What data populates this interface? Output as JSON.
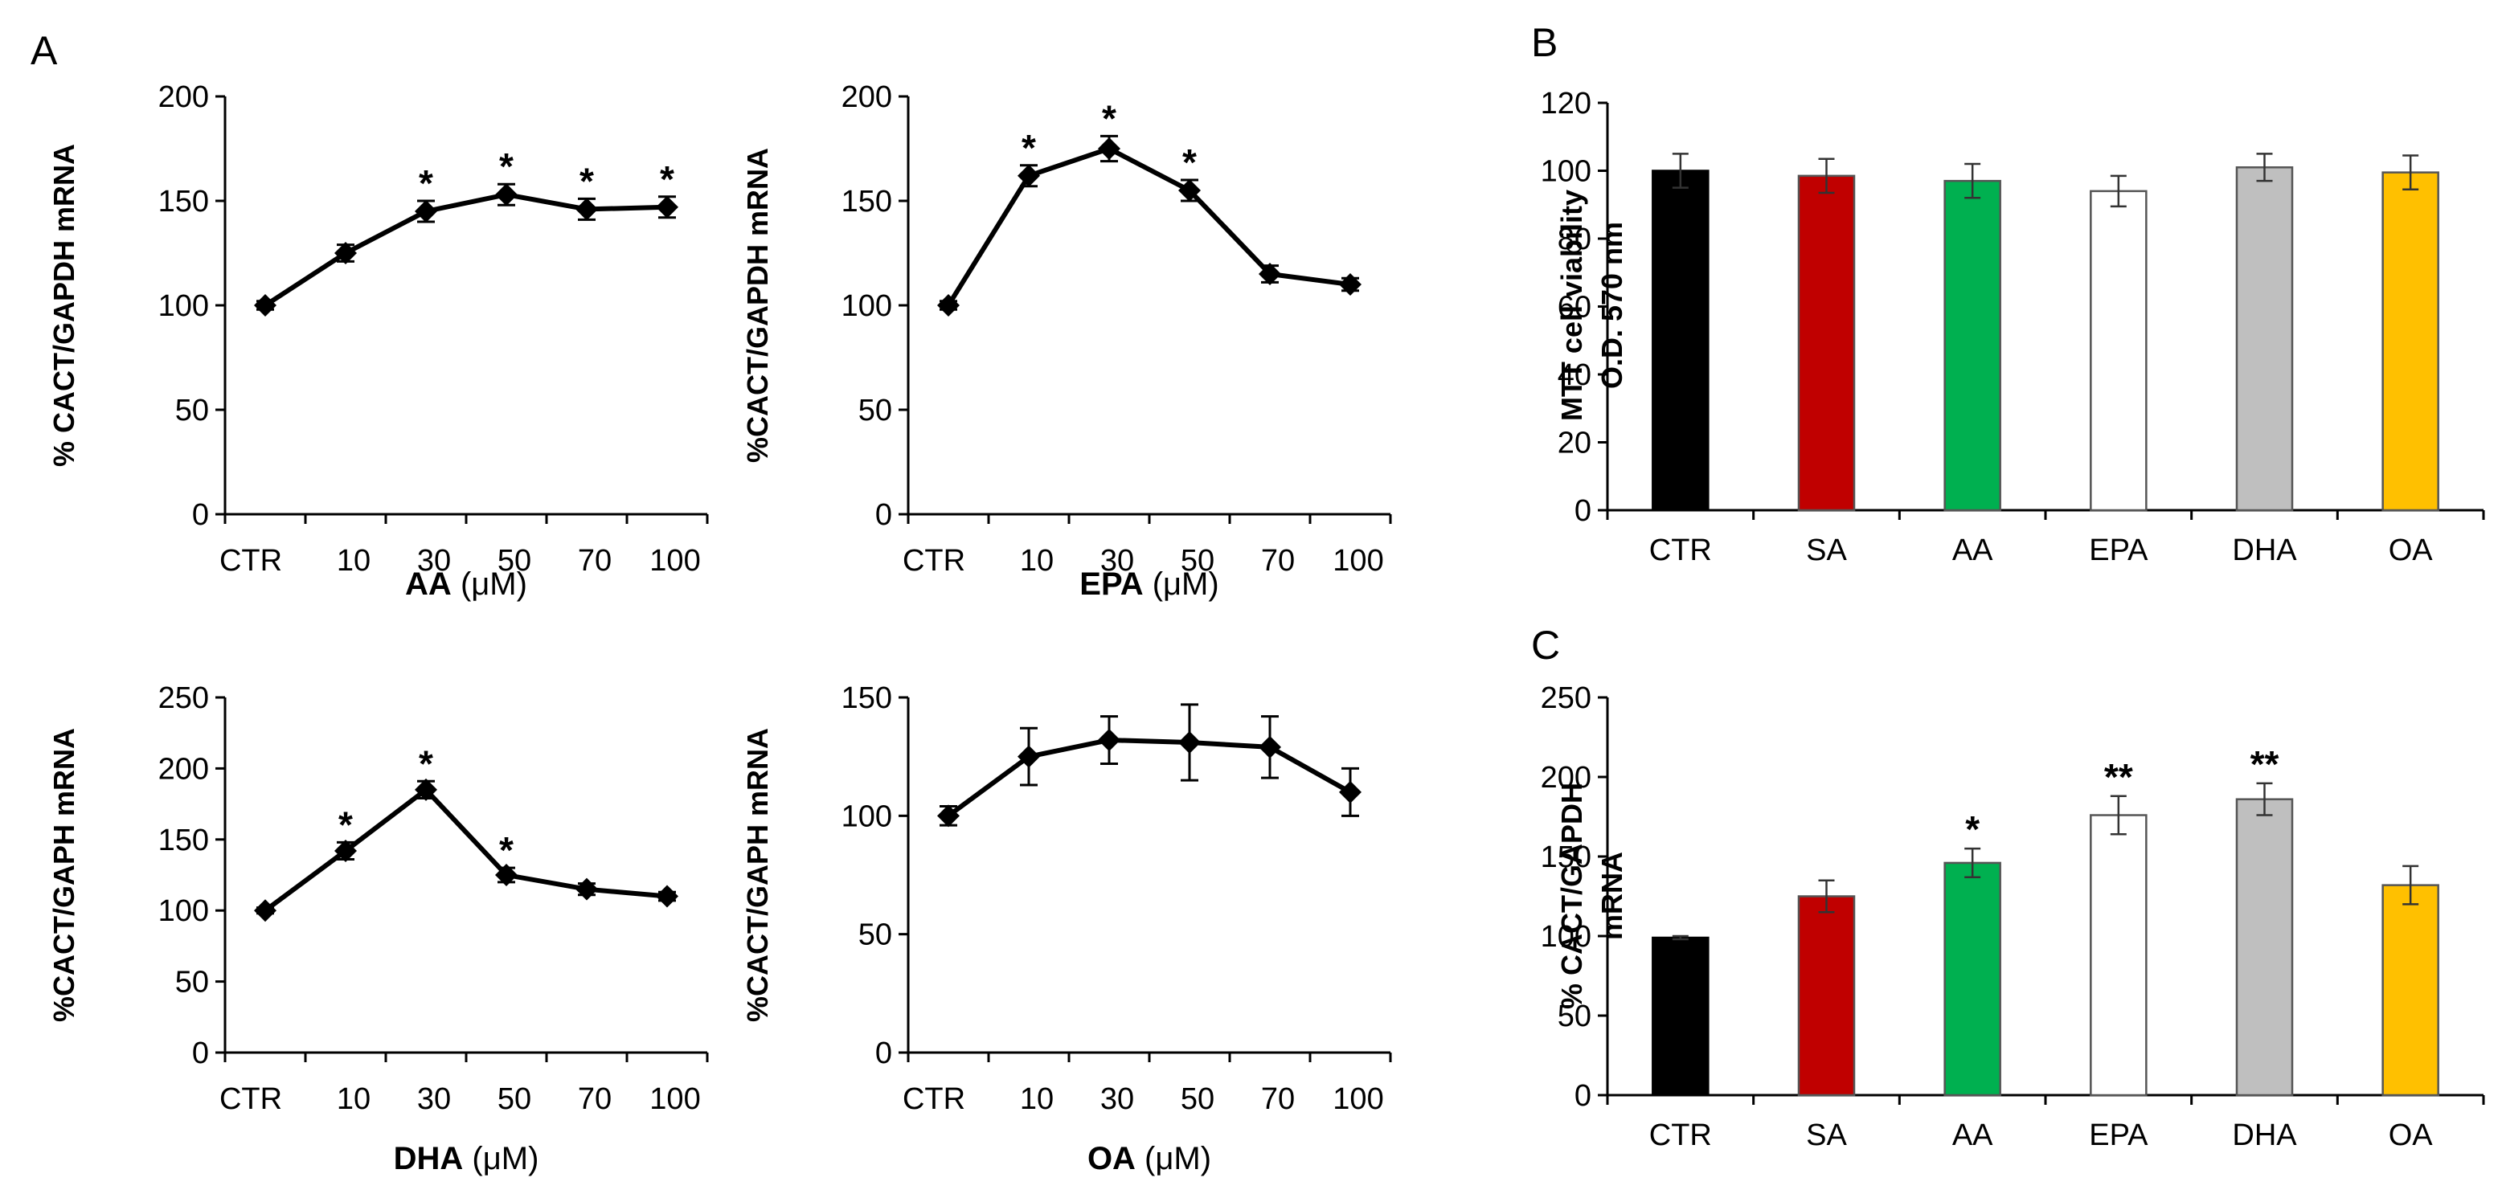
{
  "figure": {
    "panel_labels": [
      "A",
      "B",
      "C"
    ]
  },
  "chart_data": [
    {
      "id": "aa",
      "panel": "A",
      "type": "line",
      "categories": [
        "CTR",
        "10",
        "30",
        "50",
        "70",
        "100"
      ],
      "values": [
        100,
        125,
        145,
        153,
        146,
        147
      ],
      "errors": [
        2,
        4,
        5,
        5,
        5,
        5
      ],
      "significance": [
        "",
        "",
        "*",
        "*",
        "*",
        "*"
      ],
      "ylabel": "% CACT/GAPDH mRNA",
      "xlabel_bold": "AA",
      "xlabel_unit": "(μM)",
      "ylim": [
        0,
        200
      ],
      "yticks": [
        0,
        50,
        100,
        150,
        200
      ],
      "color": "#000000"
    },
    {
      "id": "epa",
      "panel": "A",
      "type": "line",
      "categories": [
        "CTR",
        "10",
        "30",
        "50",
        "70",
        "100"
      ],
      "values": [
        100,
        162,
        175,
        155,
        115,
        110
      ],
      "errors": [
        2,
        5,
        6,
        5,
        4,
        3
      ],
      "significance": [
        "",
        "*",
        "*",
        "*",
        "",
        ""
      ],
      "ylabel": "%CACT/GAPDH mRNA",
      "xlabel_bold": "EPA",
      "xlabel_unit": "(μM)",
      "ylim": [
        0,
        200
      ],
      "yticks": [
        0,
        50,
        100,
        150,
        200
      ],
      "color": "#000000"
    },
    {
      "id": "dha",
      "panel": "A",
      "type": "line",
      "categories": [
        "CTR",
        "10",
        "30",
        "50",
        "70",
        "100"
      ],
      "values": [
        100,
        142,
        185,
        125,
        115,
        110
      ],
      "errors": [
        2,
        6,
        6,
        5,
        4,
        3
      ],
      "significance": [
        "",
        "*",
        "*",
        "*",
        "",
        ""
      ],
      "ylabel": "%CACT/GAPH mRNA",
      "xlabel_bold": "DHA",
      "xlabel_unit": " (μM)",
      "ylim": [
        0,
        250
      ],
      "yticks": [
        0,
        50,
        100,
        150,
        200,
        250
      ],
      "color": "#000000"
    },
    {
      "id": "oa",
      "panel": "A",
      "type": "line",
      "categories": [
        "CTR",
        "10",
        "30",
        "50",
        "70",
        "100"
      ],
      "values": [
        100,
        125,
        132,
        131,
        129,
        110
      ],
      "errors": [
        4,
        12,
        10,
        16,
        13,
        10
      ],
      "significance": [
        "",
        "",
        "",
        "",
        "",
        ""
      ],
      "ylabel": "%CACT/GAPH mRNA",
      "xlabel_bold": "OA",
      "xlabel_unit": "(μM)",
      "ylim": [
        0,
        150
      ],
      "yticks": [
        0,
        50,
        100,
        150
      ],
      "color": "#000000"
    },
    {
      "id": "mtt",
      "panel": "B",
      "type": "bar",
      "categories": [
        "CTR",
        "SA",
        "AA",
        "EPA",
        "DHA",
        "OA"
      ],
      "values": [
        100,
        98.5,
        97,
        94,
        101,
        99.5
      ],
      "errors": [
        5,
        5,
        5,
        4.5,
        4,
        5
      ],
      "significance": [
        "",
        "",
        "",
        "",
        "",
        ""
      ],
      "colors": [
        "#000000",
        "#c00000",
        "#00b050",
        "#ffffff",
        "#bfbfbf",
        "#ffc000"
      ],
      "ylabel_lines": [
        "MTT cell viability",
        "O.D. 570 nm"
      ],
      "ylim": [
        0,
        120
      ],
      "yticks": [
        0,
        20,
        40,
        60,
        80,
        100,
        120
      ]
    },
    {
      "id": "cact",
      "panel": "C",
      "type": "bar",
      "categories": [
        "CTR",
        "SA",
        "AA",
        "EPA",
        "DHA",
        "OA"
      ],
      "values": [
        99,
        125,
        146,
        176,
        186,
        132
      ],
      "errors": [
        1,
        10,
        9,
        12,
        10,
        12
      ],
      "significance": [
        "",
        "",
        "*",
        "**",
        "**",
        ""
      ],
      "colors": [
        "#000000",
        "#c00000",
        "#00b050",
        "#ffffff",
        "#bfbfbf",
        "#ffc000"
      ],
      "ylabel_lines": [
        "% CACT/GAPDH",
        "mRNA"
      ],
      "ylim": [
        0,
        250
      ],
      "yticks": [
        0,
        50,
        100,
        150,
        200,
        250
      ]
    }
  ]
}
